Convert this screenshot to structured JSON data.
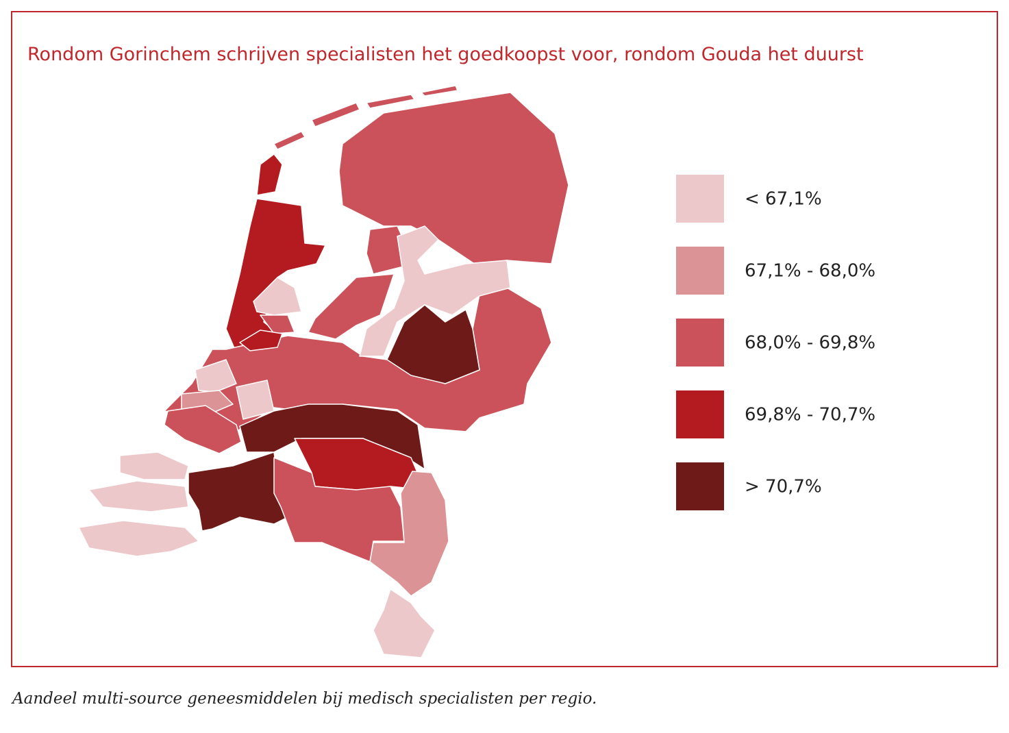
{
  "title": "Rondom Gorinchem schrijven specialisten het goedkoopst voor, rondom Gouda het duurst",
  "legend": [
    {
      "label": "< 67,1%",
      "color": "#ecc8cb"
    },
    {
      "label": "67,1% - 68,0%",
      "color": "#dc9396"
    },
    {
      "label": "68,0% - 69,8%",
      "color": "#cb525a"
    },
    {
      "label": "69,8% - 70,7%",
      "color": "#b31b20"
    },
    {
      "label": "> 70,7%",
      "color": "#6e1a18"
    }
  ],
  "caption": "Aandeel multi-source geneesmiddelen bij medisch specialisten per regio."
}
